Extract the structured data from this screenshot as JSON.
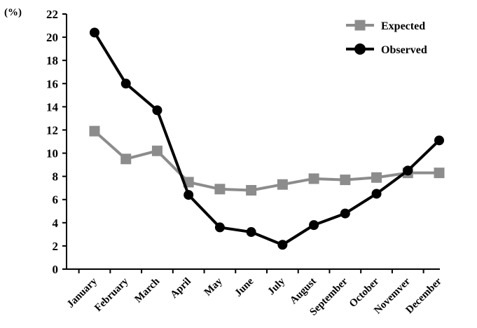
{
  "chart_data": {
    "type": "line",
    "unit": "(%)",
    "categories": [
      "January",
      "February",
      "March",
      "April",
      "May",
      "June",
      "July",
      "August",
      "September",
      "October",
      "Novemver",
      "December"
    ],
    "ylim": [
      0,
      22
    ],
    "yticks": [
      0,
      2,
      4,
      6,
      8,
      10,
      12,
      14,
      16,
      18,
      20,
      22
    ],
    "legend_position": "top-right",
    "grid": false,
    "series": [
      {
        "name": "Expected",
        "marker": "square",
        "color": "#8c8c8c",
        "values": [
          11.9,
          9.5,
          10.2,
          7.5,
          6.9,
          6.8,
          7.3,
          7.8,
          7.7,
          7.9,
          8.3,
          8.3
        ]
      },
      {
        "name": "Observed",
        "marker": "circle",
        "color": "#000000",
        "values": [
          20.4,
          16.0,
          13.7,
          6.4,
          3.6,
          3.2,
          2.1,
          3.8,
          4.8,
          6.5,
          8.5,
          11.1
        ]
      }
    ]
  }
}
